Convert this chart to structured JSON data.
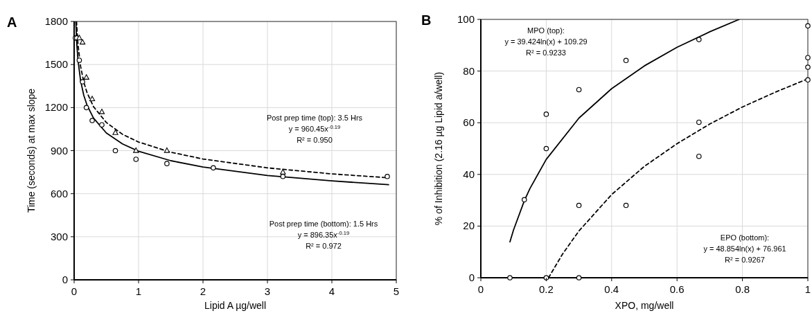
{
  "chart_data": [
    {
      "type": "scatter",
      "title": "A",
      "xlabel": "Lipid A µg/well",
      "ylabel": "Time (seconds) at max slope",
      "xlim": [
        0,
        5
      ],
      "xticks": [
        0,
        1,
        2,
        3,
        4,
        5
      ],
      "ylim": [
        0,
        1800
      ],
      "yticks": [
        0,
        300,
        600,
        900,
        1200,
        1500,
        1800
      ],
      "grid": true,
      "annotations": [
        "Post prep time (top): 3.5 Hrs\ny = 960.45x$^{-0.19}$\nR² = 0.950",
        "Post prep time (bottom): 1.5 Hrs\ny = 896.35x$^{-0.19}$\nR² = 0.972"
      ],
      "series": [
        {
          "marker": "circle",
          "color": "#000000",
          "x": [
            0.02,
            0.04,
            0.08,
            0.13,
            0.19,
            0.28,
            0.43,
            0.64,
            0.96,
            1.44,
            2.16,
            3.24,
            4.86
          ],
          "values": [
            1685,
            1685,
            1530,
            1380,
            1200,
            1110,
            1080,
            900,
            840,
            810,
            780,
            720,
            720
          ]
        },
        {
          "marker": "triangle",
          "color": "#000000",
          "x": [
            0.08,
            0.13,
            0.19,
            0.28,
            0.43,
            0.64,
            0.96,
            1.44,
            3.24
          ],
          "values": [
            1685,
            1655,
            1410,
            1260,
            1170,
            1025,
            900,
            900,
            750
          ]
        },
        {
          "type": "line",
          "line_style": "dashed",
          "color": "#000000",
          "x": [
            0.0367,
            0.06,
            0.1,
            0.15,
            0.2,
            0.3,
            0.5,
            0.75,
            1,
            1.5,
            2,
            3,
            4,
            4.88
          ],
          "values": [
            1800,
            1639,
            1488,
            1377,
            1304,
            1207,
            1096,
            1014,
            960,
            889,
            842,
            780,
            738,
            711
          ]
        },
        {
          "type": "line",
          "line_style": "solid",
          "color": "#000000",
          "x": [
            0.0255,
            0.04,
            0.06,
            0.1,
            0.15,
            0.2,
            0.3,
            0.5,
            0.75,
            1,
            1.5,
            2,
            3,
            4,
            4.88
          ],
          "values": [
            1800,
            1652,
            1530,
            1388,
            1285,
            1217,
            1127,
            1023,
            947,
            896,
            830,
            786,
            727,
            689,
            663
          ]
        }
      ]
    },
    {
      "type": "scatter",
      "title": "B",
      "xlabel": "XPO, mg/well",
      "ylabel": "% of Inhibition (2.16 µg Lipid a/well)",
      "xlim": [
        0,
        1
      ],
      "xticks": [
        0,
        0.2,
        0.4,
        0.6,
        0.8,
        1
      ],
      "ylim": [
        0,
        100
      ],
      "yticks": [
        0,
        20,
        40,
        60,
        80,
        100
      ],
      "grid": true,
      "annotations": [
        "MPO (top):\ny = 39.424ln(x)  + 109.29\nR² = 0.9233",
        "EPO (bottom):\ny = 48.854ln(x)  + 76.961\nR² = 0.9267"
      ],
      "series": [
        {
          "marker": "circle",
          "color": "#000000",
          "x": [
            0.089,
            0.133,
            0.2,
            0.2,
            0.3,
            0.444,
            0.667,
            1,
            1
          ],
          "values": [
            0,
            30.2,
            63.3,
            50,
            72.8,
            84.1,
            92.2,
            97.5,
            81.5
          ]
        },
        {
          "marker": "circle",
          "color": "#000000",
          "x": [
            0.2,
            0.3,
            0.3,
            0.444,
            0.667,
            0.667,
            1,
            1
          ],
          "values": [
            0,
            0,
            28,
            28,
            60.2,
            47,
            85.2,
            76.6
          ]
        },
        {
          "type": "line",
          "line_style": "solid",
          "color": "#000000",
          "x": [
            0.089,
            0.1,
            0.133,
            0.15,
            0.2,
            0.3,
            0.4,
            0.5,
            0.6,
            0.7,
            0.79
          ],
          "values": [
            13.9,
            18.5,
            29.8,
            34.5,
            45.8,
            61.8,
            73.2,
            82,
            89.2,
            95.2,
            100
          ]
        },
        {
          "type": "line",
          "line_style": "dashed",
          "color": "#000000",
          "x": [
            0.207,
            0.25,
            0.3,
            0.4,
            0.5,
            0.6,
            0.7,
            0.8,
            0.9,
            1
          ],
          "values": [
            0,
            9.2,
            18.1,
            32.2,
            43.1,
            51.9,
            59.5,
            66.1,
            71.8,
            77
          ]
        }
      ]
    }
  ]
}
